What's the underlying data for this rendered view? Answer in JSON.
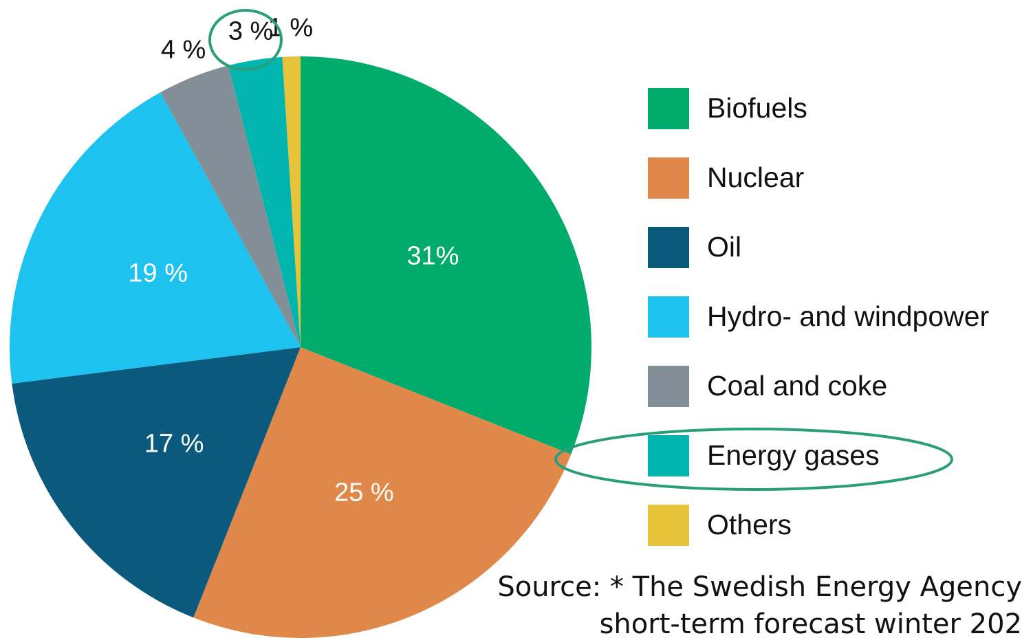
{
  "chart_data": {
    "type": "pie",
    "series": [
      {
        "name": "Biofuels",
        "color": "#00ab6b",
        "value": 31,
        "value_label": "31%"
      },
      {
        "name": "Nuclear",
        "color": "#e0874a",
        "value": 25,
        "value_label": "25 %"
      },
      {
        "name": "Oil",
        "color": "#0b5a7d",
        "value": 17,
        "value_label": "17 %"
      },
      {
        "name": "Hydro- and windpower",
        "color": "#1ec2ef",
        "value": 19,
        "value_label": "19 %"
      },
      {
        "name": "Coal and coke",
        "color": "#838f97",
        "value": 4,
        "value_label": "4 %"
      },
      {
        "name": "Energy gases",
        "color": "#00b5ae",
        "value": 3,
        "value_label": "3 %"
      },
      {
        "name": "Others",
        "color": "#e6c33a",
        "value": 1,
        "value_label": "1 %"
      }
    ],
    "source": [
      "Source: * The Swedish Energy Agency",
      "short-term forecast winter 202"
    ]
  }
}
